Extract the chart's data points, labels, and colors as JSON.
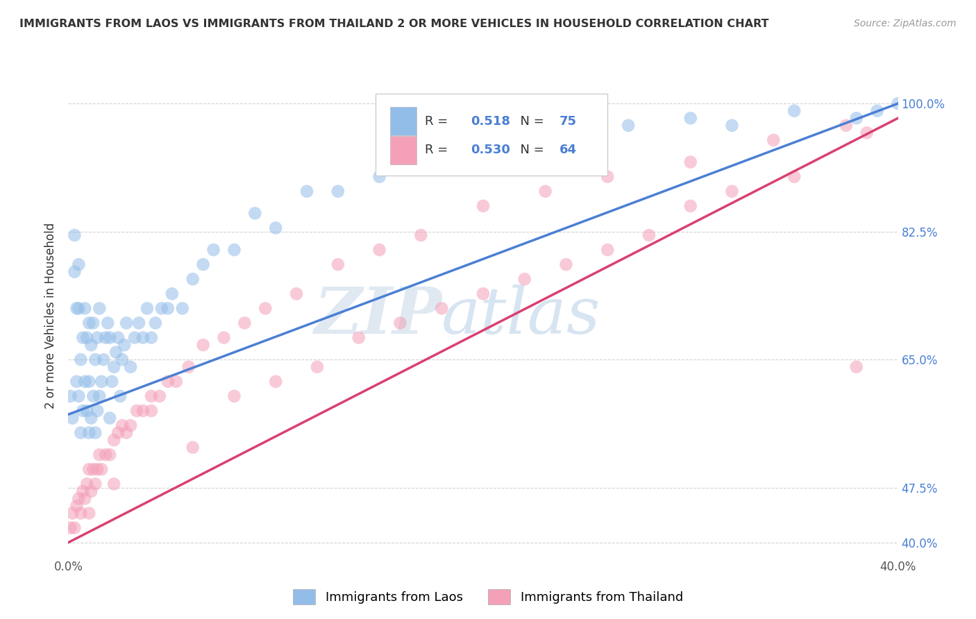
{
  "title": "IMMIGRANTS FROM LAOS VS IMMIGRANTS FROM THAILAND 2 OR MORE VEHICLES IN HOUSEHOLD CORRELATION CHART",
  "source": "Source: ZipAtlas.com",
  "ylabel": "2 or more Vehicles in Household",
  "legend_label1": "Immigrants from Laos",
  "legend_label2": "Immigrants from Thailand",
  "R1": 0.518,
  "N1": 75,
  "R2": 0.53,
  "N2": 64,
  "color1": "#92BDE8",
  "color2": "#F4A0B8",
  "line_color1": "#4A7FD4",
  "line_color2": "#D94070",
  "background_color": "#FFFFFF",
  "grid_color": "#CCCCCC",
  "xlim": [
    0.0,
    0.4
  ],
  "ylim": [
    0.38,
    1.04
  ],
  "y_tick_vals": [
    1.0,
    0.825,
    0.65,
    0.475,
    0.4
  ],
  "y_tick_labels": [
    "100.0%",
    "82.5%",
    "65.0%",
    "47.5%",
    "40.0%"
  ],
  "x_tick_vals": [
    0.0,
    0.4
  ],
  "x_tick_labels": [
    "0.0%",
    "40.0%"
  ],
  "laos_x": [
    0.001,
    0.002,
    0.003,
    0.003,
    0.004,
    0.004,
    0.005,
    0.005,
    0.005,
    0.006,
    0.006,
    0.007,
    0.007,
    0.008,
    0.008,
    0.009,
    0.009,
    0.01,
    0.01,
    0.01,
    0.011,
    0.011,
    0.012,
    0.012,
    0.013,
    0.013,
    0.014,
    0.014,
    0.015,
    0.015,
    0.016,
    0.017,
    0.018,
    0.019,
    0.02,
    0.02,
    0.021,
    0.022,
    0.023,
    0.024,
    0.025,
    0.026,
    0.027,
    0.028,
    0.03,
    0.032,
    0.034,
    0.036,
    0.038,
    0.04,
    0.042,
    0.045,
    0.048,
    0.05,
    0.055,
    0.06,
    0.065,
    0.07,
    0.08,
    0.09,
    0.1,
    0.115,
    0.13,
    0.15,
    0.17,
    0.2,
    0.22,
    0.25,
    0.27,
    0.3,
    0.32,
    0.35,
    0.38,
    0.39,
    0.4
  ],
  "laos_y": [
    0.6,
    0.57,
    0.77,
    0.82,
    0.62,
    0.72,
    0.6,
    0.72,
    0.78,
    0.55,
    0.65,
    0.58,
    0.68,
    0.62,
    0.72,
    0.58,
    0.68,
    0.55,
    0.62,
    0.7,
    0.57,
    0.67,
    0.6,
    0.7,
    0.55,
    0.65,
    0.58,
    0.68,
    0.6,
    0.72,
    0.62,
    0.65,
    0.68,
    0.7,
    0.57,
    0.68,
    0.62,
    0.64,
    0.66,
    0.68,
    0.6,
    0.65,
    0.67,
    0.7,
    0.64,
    0.68,
    0.7,
    0.68,
    0.72,
    0.68,
    0.7,
    0.72,
    0.72,
    0.74,
    0.72,
    0.76,
    0.78,
    0.8,
    0.8,
    0.85,
    0.83,
    0.88,
    0.88,
    0.9,
    0.92,
    0.94,
    0.96,
    0.95,
    0.97,
    0.98,
    0.97,
    0.99,
    0.98,
    0.99,
    1.0
  ],
  "thailand_x": [
    0.001,
    0.002,
    0.003,
    0.004,
    0.005,
    0.006,
    0.007,
    0.008,
    0.009,
    0.01,
    0.01,
    0.011,
    0.012,
    0.013,
    0.014,
    0.015,
    0.016,
    0.018,
    0.02,
    0.022,
    0.024,
    0.026,
    0.028,
    0.03,
    0.033,
    0.036,
    0.04,
    0.044,
    0.048,
    0.052,
    0.058,
    0.065,
    0.075,
    0.085,
    0.095,
    0.11,
    0.13,
    0.15,
    0.17,
    0.2,
    0.23,
    0.26,
    0.3,
    0.34,
    0.375,
    0.022,
    0.04,
    0.06,
    0.08,
    0.1,
    0.12,
    0.14,
    0.16,
    0.18,
    0.2,
    0.22,
    0.24,
    0.26,
    0.28,
    0.3,
    0.32,
    0.35,
    0.385,
    0.38
  ],
  "thailand_y": [
    0.42,
    0.44,
    0.42,
    0.45,
    0.46,
    0.44,
    0.47,
    0.46,
    0.48,
    0.44,
    0.5,
    0.47,
    0.5,
    0.48,
    0.5,
    0.52,
    0.5,
    0.52,
    0.52,
    0.54,
    0.55,
    0.56,
    0.55,
    0.56,
    0.58,
    0.58,
    0.6,
    0.6,
    0.62,
    0.62,
    0.64,
    0.67,
    0.68,
    0.7,
    0.72,
    0.74,
    0.78,
    0.8,
    0.82,
    0.86,
    0.88,
    0.9,
    0.92,
    0.95,
    0.97,
    0.48,
    0.58,
    0.53,
    0.6,
    0.62,
    0.64,
    0.68,
    0.7,
    0.72,
    0.74,
    0.76,
    0.78,
    0.8,
    0.82,
    0.86,
    0.88,
    0.9,
    0.96,
    0.64
  ]
}
